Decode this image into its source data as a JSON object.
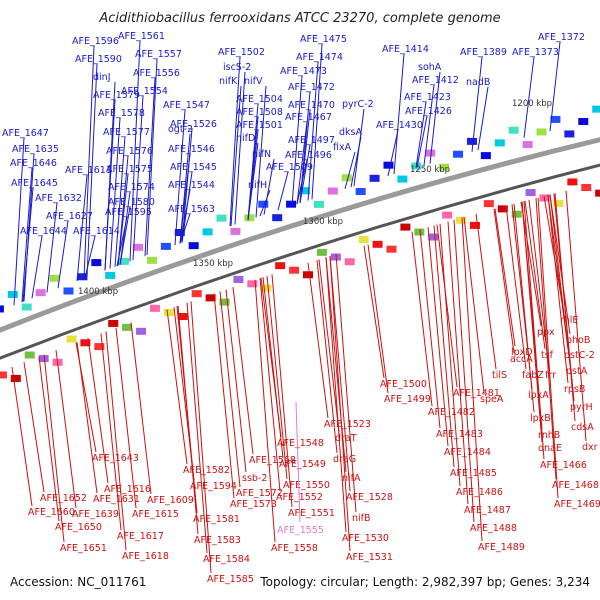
{
  "title": "Acidithiobacillus ferrooxidans ATCC 23270, complete genome",
  "footer": {
    "accession": "Accession: NC_011761",
    "summary": "Topology: circular; Length: 2,982,397 bp; Genes: 3,234"
  },
  "scale_labels": [
    "1200 kbp",
    "1250 kbp",
    "1300 kbp",
    "1350 kbp",
    "1400 kbp"
  ],
  "colors": {
    "forward_label": "#1a1acc",
    "reverse_label": "#cc1111",
    "rna_label": "#e07ad0",
    "backbone": "#888888"
  },
  "forward_labels": [
    "AFE_1372",
    "AFE_1373",
    "AFE_1389",
    "AFE_1414",
    "sohA",
    "nadB",
    "AFE_1412",
    "AFE_1423",
    "AFE_1426",
    "AFE_1430",
    "pyrC-2",
    "dksA",
    "fixA",
    "AFE_1475",
    "AFE_1474",
    "AFE_1473",
    "AFE_1472",
    "AFE_1470",
    "AFE_1467",
    "AFE_1497",
    "AFE_1496",
    "AFE_1502",
    "iscS-2",
    "nifK",
    "nifV",
    "AFE_1504",
    "AFE_1508",
    "AFE_1501",
    "nifD",
    "nifN",
    "nifH",
    "AFE_1509",
    "AFE_1561",
    "AFE_1557",
    "AFE_1556",
    "AFE_1554",
    "AFE_1547",
    "ogt-2",
    "AFE_1526",
    "AFE_1546",
    "AFE_1545",
    "AFE_1544",
    "AFE_1596",
    "AFE_1590",
    "dinJ",
    "AFE_1579",
    "AFE_1578",
    "AFE_1577",
    "AFE_1576",
    "AFE_1575",
    "AFE_1574",
    "AFE_1580",
    "AFE_1595",
    "AFE_1563",
    "AFE_1647",
    "AFE_1635",
    "AFE_1646",
    "AFE_1611",
    "AFE_1645",
    "AFE_1632",
    "AFE_1627",
    "AFE_1644",
    "AFE_1614"
  ],
  "reverse_labels": [
    "rhlE",
    "phoB",
    "ppx",
    "tsf",
    "pstC-2",
    "pstA",
    "accA",
    "lpxD",
    "fabZ",
    "frr",
    "rpsB",
    "tilS",
    "lpxA",
    "pyrH",
    "speA",
    "lpxB",
    "cdsA",
    "AFE_1481",
    "AFE_1482",
    "rnhB",
    "dxr",
    "AFE_1483",
    "dnaE",
    "AFE_1484",
    "AFE_1466",
    "AFE_1485",
    "AFE_1468",
    "AFE_1486",
    "AFE_1469",
    "AFE_1487",
    "AFE_1488",
    "AFE_1489",
    "AFE_1500",
    "AFE_1499",
    "AFE_1523",
    "draT",
    "draG",
    "nifA",
    "AFE_1528",
    "nifB",
    "AFE_1530",
    "AFE_1531",
    "AFE_1548",
    "AFE_1549",
    "AFE_1550",
    "AFE_1552",
    "AFE_1551",
    "AFE_1558",
    "AFE_1568",
    "ssb-2",
    "AFE_1572",
    "AFE_1573",
    "AFE_1582",
    "AFE_1594",
    "AFE_1581",
    "AFE_1583",
    "AFE_1584",
    "AFE_1585",
    "AFE_1643",
    "AFE_1652",
    "AFE_1660",
    "AFE_1631",
    "AFE_1639",
    "AFE_1616",
    "AFE_1615",
    "AFE_1609",
    "AFE_1650",
    "AFE_1617",
    "AFE_1651",
    "AFE_1618"
  ],
  "rna_labels": [
    "AFE_1555"
  ]
}
